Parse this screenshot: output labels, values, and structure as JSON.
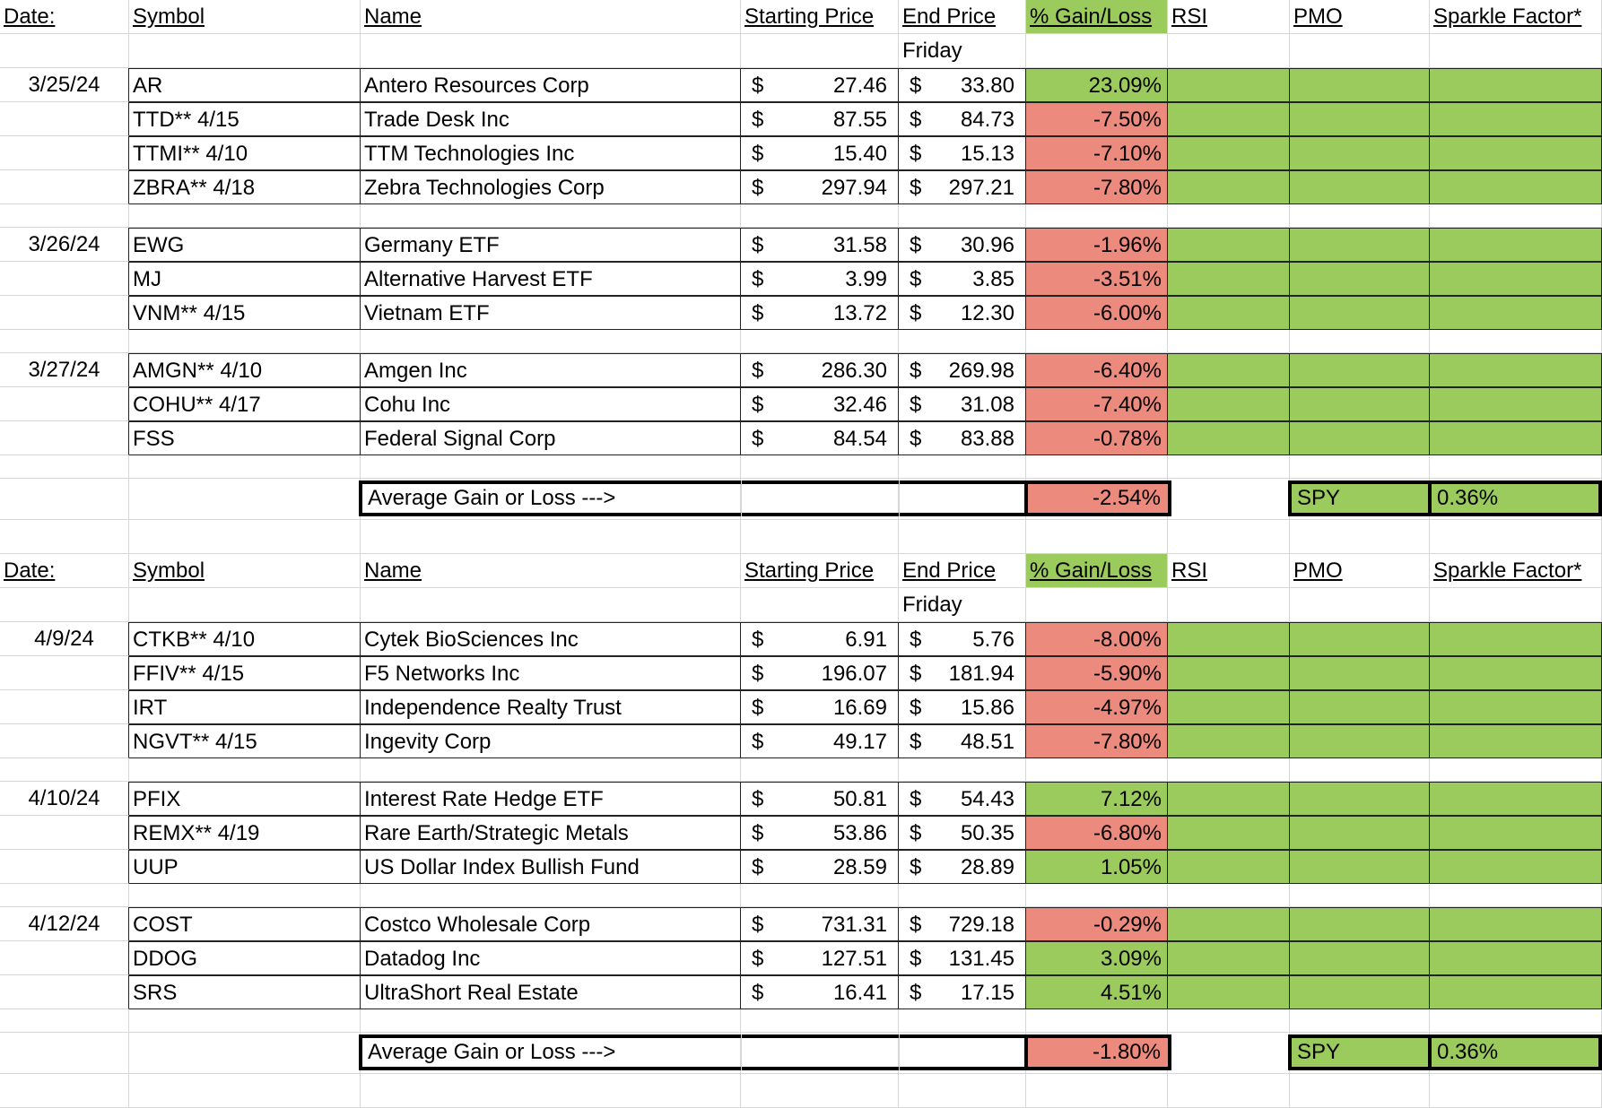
{
  "headers": {
    "date": "Date:",
    "symbol": "Symbol",
    "name": "Name",
    "starting_price": "Starting Price",
    "end_price": "End Price",
    "gain_loss": "% Gain/Loss",
    "rsi": "RSI",
    "pmo": "PMO",
    "sparkle": "Sparkle Factor*",
    "friday": "Friday"
  },
  "currency_symbol": "$",
  "colors": {
    "gain": "#9bcb5c",
    "loss": "#ec8b7d"
  },
  "tables": [
    {
      "groups": [
        {
          "date": "3/25/24",
          "rows": [
            {
              "symbol": "AR",
              "name": "Antero Resources Corp",
              "start": "27.46",
              "end": "33.80",
              "pct": "23.09%",
              "status": "gain"
            },
            {
              "symbol": "TTD** 4/15",
              "name": "Trade Desk Inc",
              "start": "87.55",
              "end": "84.73",
              "pct": "-7.50%",
              "status": "loss"
            },
            {
              "symbol": "TTMI** 4/10",
              "name": "TTM Technologies Inc",
              "start": "15.40",
              "end": "15.13",
              "pct": "-7.10%",
              "status": "loss"
            },
            {
              "symbol": "ZBRA** 4/18",
              "name": "Zebra Technologies Corp",
              "start": "297.94",
              "end": "297.21",
              "pct": "-7.80%",
              "status": "loss"
            }
          ]
        },
        {
          "date": "3/26/24",
          "rows": [
            {
              "symbol": "EWG",
              "name": "Germany ETF",
              "start": "31.58",
              "end": "30.96",
              "pct": "-1.96%",
              "status": "loss"
            },
            {
              "symbol": "MJ",
              "name": "Alternative Harvest ETF",
              "start": "3.99",
              "end": "3.85",
              "pct": "-3.51%",
              "status": "loss"
            },
            {
              "symbol": "VNM** 4/15",
              "name": "Vietnam ETF",
              "start": "13.72",
              "end": "12.30",
              "pct": "-6.00%",
              "status": "loss"
            }
          ]
        },
        {
          "date": "3/27/24",
          "rows": [
            {
              "symbol": "AMGN** 4/10",
              "name": "Amgen Inc",
              "start": "286.30",
              "end": "269.98",
              "pct": "-6.40%",
              "status": "loss"
            },
            {
              "symbol": "COHU** 4/17",
              "name": "Cohu Inc",
              "start": "32.46",
              "end": "31.08",
              "pct": "-7.40%",
              "status": "loss"
            },
            {
              "symbol": "FSS",
              "name": "Federal Signal Corp",
              "start": "84.54",
              "end": "83.88",
              "pct": "-0.78%",
              "status": "loss"
            }
          ]
        }
      ],
      "average": {
        "label": "Average Gain or Loss --->",
        "value": "-2.54%",
        "status": "loss"
      },
      "spy": {
        "label": "SPY",
        "value": "0.36%"
      }
    },
    {
      "groups": [
        {
          "date": "4/9/24",
          "rows": [
            {
              "symbol": "CTKB** 4/10",
              "name": "Cytek BioSciences Inc",
              "start": "6.91",
              "end": "5.76",
              "pct": "-8.00%",
              "status": "loss"
            },
            {
              "symbol": "FFIV** 4/15",
              "name": "F5 Networks Inc",
              "start": "196.07",
              "end": "181.94",
              "pct": "-5.90%",
              "status": "loss"
            },
            {
              "symbol": "IRT",
              "name": "Independence Realty Trust",
              "start": "16.69",
              "end": "15.86",
              "pct": "-4.97%",
              "status": "loss"
            },
            {
              "symbol": "NGVT** 4/15",
              "name": "Ingevity Corp",
              "start": "49.17",
              "end": "48.51",
              "pct": "-7.80%",
              "status": "loss"
            }
          ]
        },
        {
          "date": "4/10/24",
          "rows": [
            {
              "symbol": "PFIX",
              "name": "Interest Rate Hedge ETF",
              "start": "50.81",
              "end": "54.43",
              "pct": "7.12%",
              "status": "gain"
            },
            {
              "symbol": "REMX** 4/19",
              "name": "Rare Earth/Strategic Metals",
              "start": "53.86",
              "end": "50.35",
              "pct": "-6.80%",
              "status": "loss"
            },
            {
              "symbol": "UUP",
              "name": "US Dollar Index Bullish Fund",
              "start": "28.59",
              "end": "28.89",
              "pct": "1.05%",
              "status": "gain"
            }
          ]
        },
        {
          "date": "4/12/24",
          "rows": [
            {
              "symbol": "COST",
              "name": "Costco Wholesale Corp",
              "start": "731.31",
              "end": "729.18",
              "pct": "-0.29%",
              "status": "loss"
            },
            {
              "symbol": "DDOG",
              "name": "Datadog Inc",
              "start": "127.51",
              "end": "131.45",
              "pct": "3.09%",
              "status": "gain"
            },
            {
              "symbol": "SRS",
              "name": "UltraShort Real Estate",
              "start": "16.41",
              "end": "17.15",
              "pct": "4.51%",
              "status": "gain"
            }
          ]
        }
      ],
      "average": {
        "label": "Average Gain or Loss --->",
        "value": "-1.80%",
        "status": "loss"
      },
      "spy": {
        "label": "SPY",
        "value": "0.36%"
      }
    }
  ]
}
